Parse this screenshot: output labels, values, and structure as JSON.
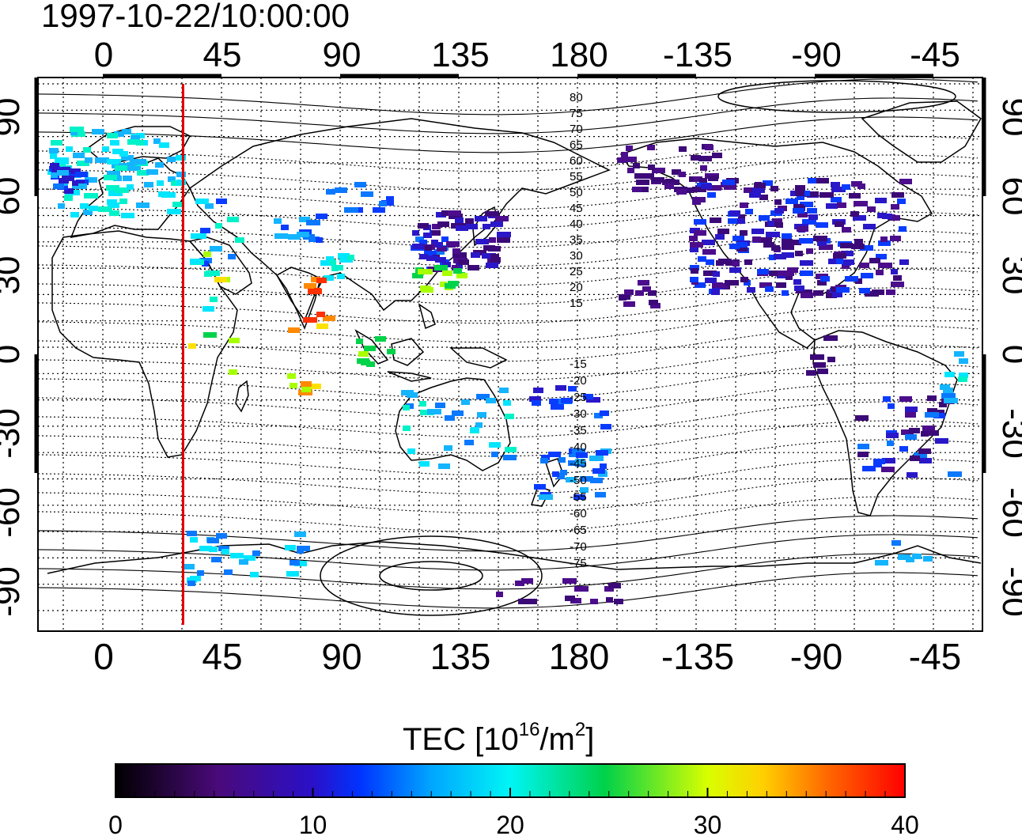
{
  "title": "1997-10-22/10:00:00",
  "map": {
    "top_longitude_labels": [
      "0",
      "45",
      "90",
      "135",
      "180",
      "-135",
      "-90",
      "-45"
    ],
    "bottom_longitude_labels": [
      "0",
      "45",
      "90",
      "135",
      "180",
      "-135",
      "-90",
      "-45"
    ],
    "left_latitude_labels": [
      "90",
      "60",
      "30",
      "0",
      "-30",
      "-60",
      "-90"
    ],
    "right_latitude_labels": [
      "90",
      "60",
      "30",
      "0",
      "-30",
      "-60",
      "-90"
    ],
    "magnetic_latitude_labels": [
      "80",
      "75",
      "70",
      "65",
      "60",
      "55",
      "50",
      "45",
      "40",
      "35",
      "30",
      "25",
      "20",
      "15",
      "-15",
      "-20",
      "-25",
      "-30",
      "-35",
      "-40",
      "-45",
      "-50",
      "-55",
      "-60",
      "-65",
      "-70",
      "-75"
    ],
    "marker_line_longitude": 30,
    "marker_line_color": "#e00000"
  },
  "colorbar": {
    "label": "TEC  [10",
    "label_sup1": "16",
    "label_mid": "/m",
    "label_sup2": "2",
    "label_end": "]",
    "ticks": [
      "0",
      "10",
      "20",
      "30",
      "40"
    ]
  }
}
